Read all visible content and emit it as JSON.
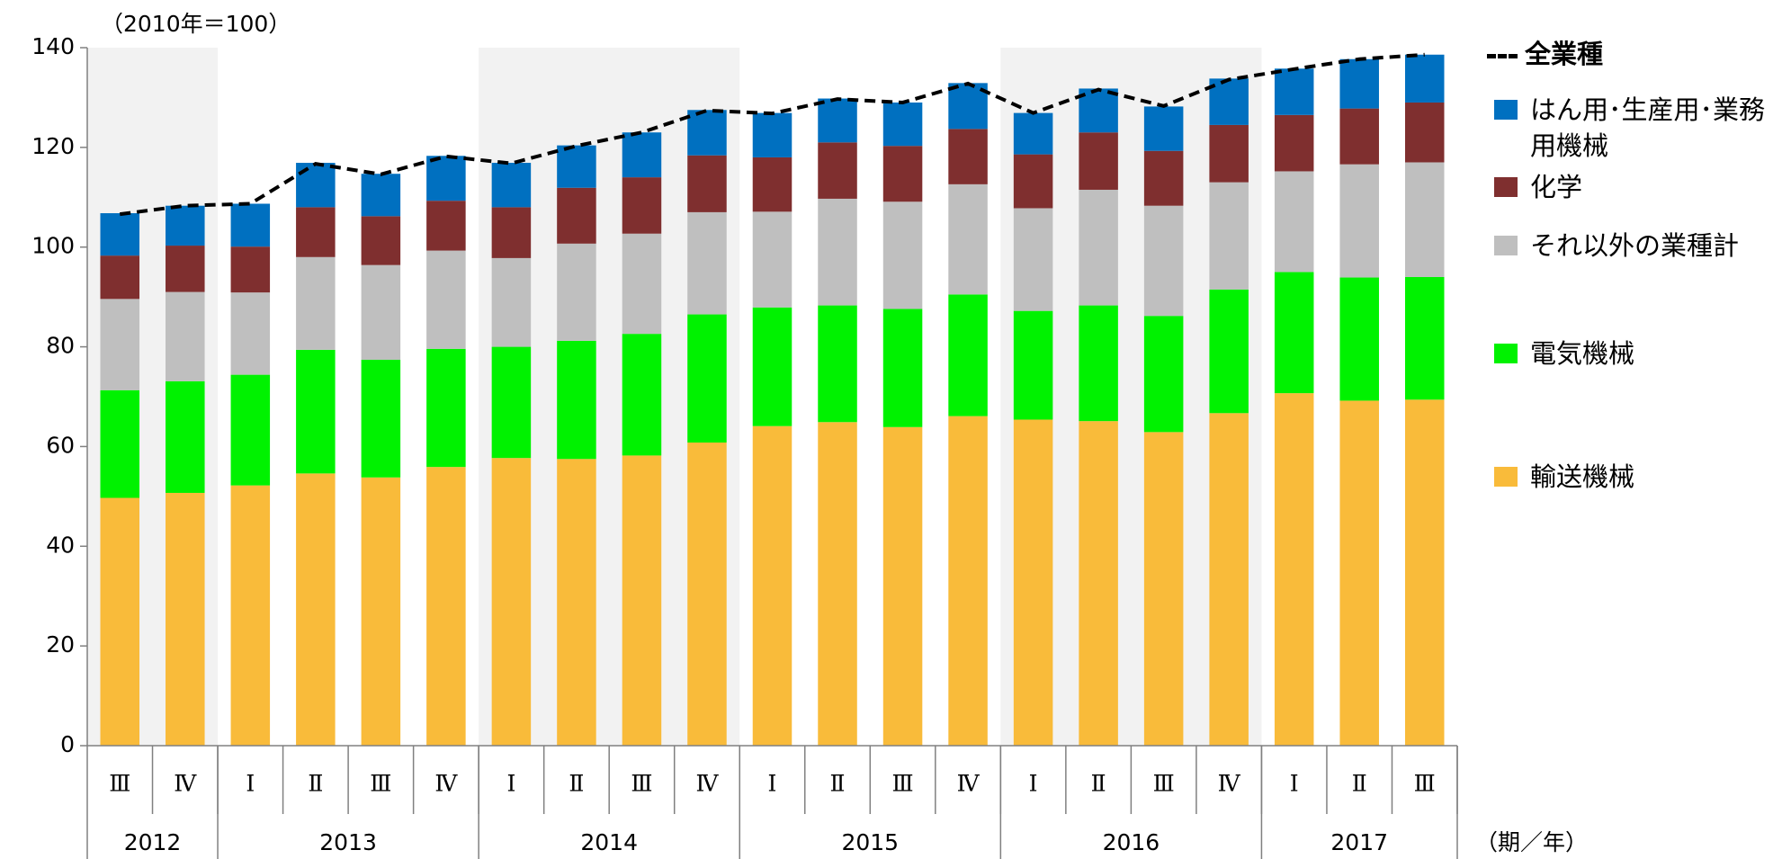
{
  "chart_data": {
    "type": "stacked-bar",
    "unit": "（2010年＝100）",
    "x_title": "（期／年）",
    "categories": [
      "Ⅲ",
      "Ⅳ",
      "Ⅰ",
      "Ⅱ",
      "Ⅲ",
      "Ⅳ",
      "Ⅰ",
      "Ⅱ",
      "Ⅲ",
      "Ⅳ",
      "Ⅰ",
      "Ⅱ",
      "Ⅲ",
      "Ⅳ",
      "Ⅰ",
      "Ⅱ",
      "Ⅲ",
      "Ⅳ",
      "Ⅰ",
      "Ⅱ",
      "Ⅲ"
    ],
    "groups": [
      {
        "label": "2012",
        "span": 2
      },
      {
        "label": "2013",
        "span": 4
      },
      {
        "label": "2014",
        "span": 4
      },
      {
        "label": "2015",
        "span": 4
      },
      {
        "label": "2016",
        "span": 4
      },
      {
        "label": "2017",
        "span": 3
      }
    ],
    "series": [
      {
        "name": "輸送機械",
        "type": "bar",
        "color": "#f9bb3a",
        "values": [
          49.7,
          50.7,
          52.2,
          54.6,
          53.8,
          55.9,
          57.7,
          57.5,
          58.2,
          60.8,
          64.1,
          64.9,
          63.9,
          66.1,
          65.4,
          65.1,
          62.9,
          66.7,
          70.7,
          69.2,
          69.4
        ]
      },
      {
        "name": "電気機械",
        "type": "bar",
        "color": "#00f200",
        "values": [
          21.6,
          22.4,
          22.2,
          24.8,
          23.6,
          23.7,
          22.3,
          23.7,
          24.4,
          25.7,
          23.8,
          23.4,
          23.7,
          24.4,
          21.8,
          23.2,
          23.3,
          24.8,
          24.3,
          24.7,
          24.6
        ]
      },
      {
        "name": "それ以外の業種計",
        "type": "bar",
        "color": "#bfbfbf",
        "values": [
          18.3,
          17.9,
          16.5,
          18.6,
          19.0,
          19.7,
          17.8,
          19.5,
          20.1,
          20.5,
          19.2,
          21.4,
          21.5,
          22.1,
          20.6,
          23.2,
          22.1,
          21.5,
          20.2,
          22.7,
          23.0
        ]
      },
      {
        "name": "化学",
        "type": "bar",
        "color": "#7f2f2f",
        "values": [
          8.7,
          9.3,
          9.2,
          10.0,
          9.8,
          10.0,
          10.2,
          11.2,
          11.3,
          11.4,
          10.9,
          11.3,
          11.2,
          11.1,
          10.8,
          11.5,
          11.0,
          11.5,
          11.3,
          11.2,
          12.0
        ]
      },
      {
        "name": "はん用･生産用･業務用機械",
        "type": "bar",
        "color": "#0070c0",
        "values": [
          8.5,
          8.0,
          8.6,
          8.9,
          8.5,
          9.0,
          8.9,
          8.5,
          9.0,
          9.1,
          8.9,
          8.8,
          8.7,
          9.2,
          8.3,
          8.8,
          8.9,
          9.3,
          9.3,
          9.9,
          9.6
        ]
      },
      {
        "name": "全業種",
        "type": "line",
        "color": "#000000",
        "values": [
          106.6,
          108.3,
          108.7,
          116.7,
          114.6,
          118.2,
          116.8,
          120.3,
          123.0,
          127.4,
          126.8,
          129.7,
          129.0,
          132.8,
          126.9,
          131.6,
          128.3,
          133.6,
          135.7,
          137.7,
          138.6
        ]
      }
    ],
    "ylim": [
      0,
      140
    ],
    "yticks": [
      0,
      20,
      40,
      60,
      80,
      100,
      120,
      140
    ]
  }
}
